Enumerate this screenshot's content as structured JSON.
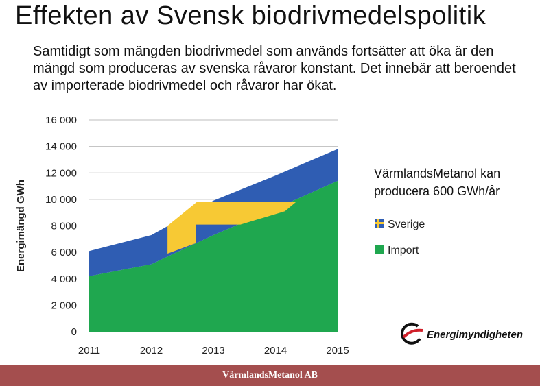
{
  "title": "Effekten av Svensk biodrivmedelspolitik",
  "intro": "Samtidigt som mängden biodrivmedel som används fortsätter att öka är den mängd som produceras av svenska råvaror konstant. Det innebär att beroendet av importerade biodrivmedel och råvaror har ökat.",
  "side_note": "VärmlandsMetanol kan producera 600 GWh/år",
  "logo_text": "Energimyndigheten",
  "footer": "VärmlandsMetanol AB",
  "colors": {
    "sverige": "#2f5db3",
    "import": "#1fa74f",
    "highlight": "#f7c934",
    "footer": "#a44e4e"
  },
  "chart_data": {
    "type": "area",
    "x": [
      "2011",
      "2012",
      "2013",
      "2014",
      "2015"
    ],
    "ylabel": "Energimängd GWh",
    "ylim": [
      0,
      16000
    ],
    "yticks": [
      "16 000",
      "14 000",
      "12 000",
      "10 000",
      "8 000",
      "6 000",
      "4 000",
      "2 000",
      "0"
    ],
    "grid": true,
    "stacked": true,
    "series": [
      {
        "name": "Import",
        "values": [
          4200,
          5100,
          7300,
          9300,
          11400
        ],
        "color": "#1fa74f"
      },
      {
        "name": "Sverige",
        "values": [
          1900,
          2200,
          2600,
          2500,
          2400
        ],
        "color": "#2f5db3"
      }
    ],
    "legend": {
      "placement": "right",
      "entries": [
        "Sverige",
        "Import"
      ],
      "sverige_icon": "swedish-flag-icon",
      "import_icon": "green-square-icon"
    }
  }
}
